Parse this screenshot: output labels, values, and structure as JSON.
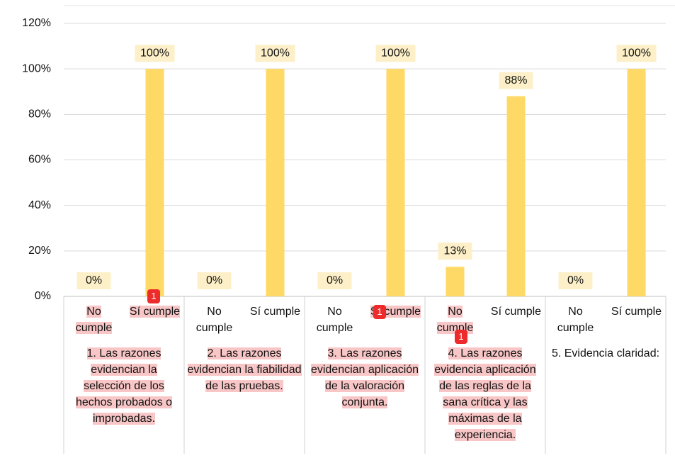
{
  "chart_data": {
    "type": "bar",
    "categories": [
      "No cumple",
      "Sí cumple",
      "No cumple",
      "Sí cumple",
      "No cumple",
      "Sí cumple",
      "No cumple",
      "Sí cumple",
      "No cumple",
      "Sí cumple"
    ],
    "groups": [
      "1. Las razones evidencian la selección de los hechos probados o improbadas.",
      "2. Las razones evidencian la fiabilidad de las pruebas.",
      "3. Las razones evidencian aplicación de la valoración conjunta.",
      "4. Las razones evidencia aplicación de las reglas de la sana crítica y las máximas de la experiencia.",
      "5. Evidencia claridad:"
    ],
    "series": [
      {
        "color": "#ffd966",
        "values": [
          0,
          100,
          0,
          100,
          0,
          100,
          13,
          88,
          0,
          100
        ],
        "value_labels": [
          "0%",
          "100%",
          "0%",
          "100%",
          "0%",
          "100%",
          "13%",
          "88%",
          "0%",
          "100%"
        ]
      }
    ],
    "ylim": [
      0,
      120
    ],
    "yticks": [
      {
        "value": 0,
        "label": "0%"
      },
      {
        "value": 20,
        "label": "20%"
      },
      {
        "value": 40,
        "label": "40%"
      },
      {
        "value": 60,
        "label": "60%"
      },
      {
        "value": 80,
        "label": "80%"
      },
      {
        "value": 100,
        "label": "100%"
      },
      {
        "value": 120,
        "label": "120%"
      }
    ],
    "grid": true,
    "badges": [
      "1",
      "1",
      "1"
    ]
  }
}
